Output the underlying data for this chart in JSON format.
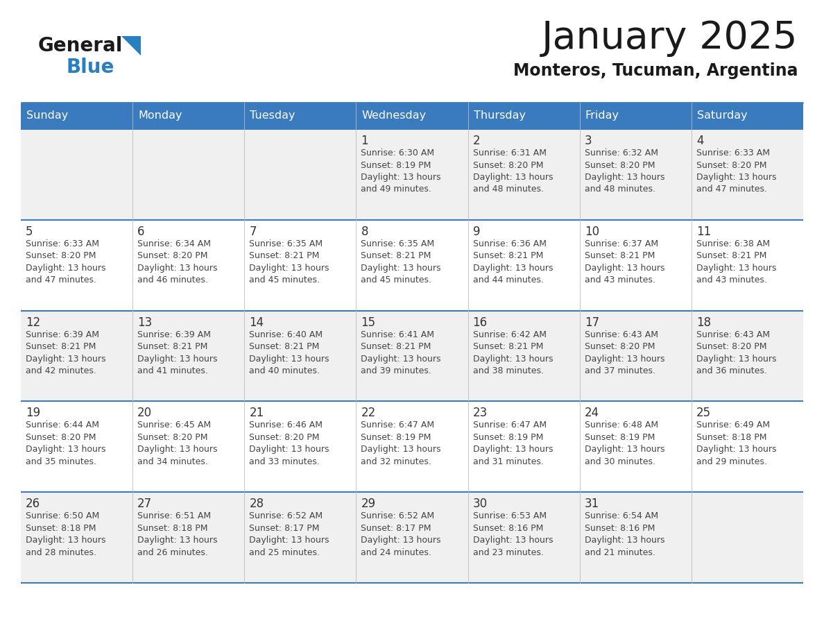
{
  "title": "January 2025",
  "subtitle": "Monteros, Tucuman, Argentina",
  "header_bg": "#3a7abf",
  "header_text_color": "#ffffff",
  "cell_bg_odd": "#f0f0f0",
  "cell_bg_even": "#ffffff",
  "border_color": "#3a7abf",
  "title_color": "#1a1a1a",
  "subtitle_color": "#1a1a1a",
  "day_number_color": "#333333",
  "cell_text_color": "#444444",
  "logo_text_color": "#1a1a1a",
  "logo_blue_color": "#2a7fc1",
  "logo_triangle_color": "#2a7fc1",
  "days_of_week": [
    "Sunday",
    "Monday",
    "Tuesday",
    "Wednesday",
    "Thursday",
    "Friday",
    "Saturday"
  ],
  "weeks": [
    [
      {
        "day": 0,
        "text": ""
      },
      {
        "day": 0,
        "text": ""
      },
      {
        "day": 0,
        "text": ""
      },
      {
        "day": 1,
        "text": "Sunrise: 6:30 AM\nSunset: 8:19 PM\nDaylight: 13 hours\nand 49 minutes."
      },
      {
        "day": 2,
        "text": "Sunrise: 6:31 AM\nSunset: 8:20 PM\nDaylight: 13 hours\nand 48 minutes."
      },
      {
        "day": 3,
        "text": "Sunrise: 6:32 AM\nSunset: 8:20 PM\nDaylight: 13 hours\nand 48 minutes."
      },
      {
        "day": 4,
        "text": "Sunrise: 6:33 AM\nSunset: 8:20 PM\nDaylight: 13 hours\nand 47 minutes."
      }
    ],
    [
      {
        "day": 5,
        "text": "Sunrise: 6:33 AM\nSunset: 8:20 PM\nDaylight: 13 hours\nand 47 minutes."
      },
      {
        "day": 6,
        "text": "Sunrise: 6:34 AM\nSunset: 8:20 PM\nDaylight: 13 hours\nand 46 minutes."
      },
      {
        "day": 7,
        "text": "Sunrise: 6:35 AM\nSunset: 8:21 PM\nDaylight: 13 hours\nand 45 minutes."
      },
      {
        "day": 8,
        "text": "Sunrise: 6:35 AM\nSunset: 8:21 PM\nDaylight: 13 hours\nand 45 minutes."
      },
      {
        "day": 9,
        "text": "Sunrise: 6:36 AM\nSunset: 8:21 PM\nDaylight: 13 hours\nand 44 minutes."
      },
      {
        "day": 10,
        "text": "Sunrise: 6:37 AM\nSunset: 8:21 PM\nDaylight: 13 hours\nand 43 minutes."
      },
      {
        "day": 11,
        "text": "Sunrise: 6:38 AM\nSunset: 8:21 PM\nDaylight: 13 hours\nand 43 minutes."
      }
    ],
    [
      {
        "day": 12,
        "text": "Sunrise: 6:39 AM\nSunset: 8:21 PM\nDaylight: 13 hours\nand 42 minutes."
      },
      {
        "day": 13,
        "text": "Sunrise: 6:39 AM\nSunset: 8:21 PM\nDaylight: 13 hours\nand 41 minutes."
      },
      {
        "day": 14,
        "text": "Sunrise: 6:40 AM\nSunset: 8:21 PM\nDaylight: 13 hours\nand 40 minutes."
      },
      {
        "day": 15,
        "text": "Sunrise: 6:41 AM\nSunset: 8:21 PM\nDaylight: 13 hours\nand 39 minutes."
      },
      {
        "day": 16,
        "text": "Sunrise: 6:42 AM\nSunset: 8:21 PM\nDaylight: 13 hours\nand 38 minutes."
      },
      {
        "day": 17,
        "text": "Sunrise: 6:43 AM\nSunset: 8:20 PM\nDaylight: 13 hours\nand 37 minutes."
      },
      {
        "day": 18,
        "text": "Sunrise: 6:43 AM\nSunset: 8:20 PM\nDaylight: 13 hours\nand 36 minutes."
      }
    ],
    [
      {
        "day": 19,
        "text": "Sunrise: 6:44 AM\nSunset: 8:20 PM\nDaylight: 13 hours\nand 35 minutes."
      },
      {
        "day": 20,
        "text": "Sunrise: 6:45 AM\nSunset: 8:20 PM\nDaylight: 13 hours\nand 34 minutes."
      },
      {
        "day": 21,
        "text": "Sunrise: 6:46 AM\nSunset: 8:20 PM\nDaylight: 13 hours\nand 33 minutes."
      },
      {
        "day": 22,
        "text": "Sunrise: 6:47 AM\nSunset: 8:19 PM\nDaylight: 13 hours\nand 32 minutes."
      },
      {
        "day": 23,
        "text": "Sunrise: 6:47 AM\nSunset: 8:19 PM\nDaylight: 13 hours\nand 31 minutes."
      },
      {
        "day": 24,
        "text": "Sunrise: 6:48 AM\nSunset: 8:19 PM\nDaylight: 13 hours\nand 30 minutes."
      },
      {
        "day": 25,
        "text": "Sunrise: 6:49 AM\nSunset: 8:18 PM\nDaylight: 13 hours\nand 29 minutes."
      }
    ],
    [
      {
        "day": 26,
        "text": "Sunrise: 6:50 AM\nSunset: 8:18 PM\nDaylight: 13 hours\nand 28 minutes."
      },
      {
        "day": 27,
        "text": "Sunrise: 6:51 AM\nSunset: 8:18 PM\nDaylight: 13 hours\nand 26 minutes."
      },
      {
        "day": 28,
        "text": "Sunrise: 6:52 AM\nSunset: 8:17 PM\nDaylight: 13 hours\nand 25 minutes."
      },
      {
        "day": 29,
        "text": "Sunrise: 6:52 AM\nSunset: 8:17 PM\nDaylight: 13 hours\nand 24 minutes."
      },
      {
        "day": 30,
        "text": "Sunrise: 6:53 AM\nSunset: 8:16 PM\nDaylight: 13 hours\nand 23 minutes."
      },
      {
        "day": 31,
        "text": "Sunrise: 6:54 AM\nSunset: 8:16 PM\nDaylight: 13 hours\nand 21 minutes."
      },
      {
        "day": 0,
        "text": ""
      }
    ]
  ],
  "fig_width": 11.88,
  "fig_height": 9.18,
  "dpi": 100
}
